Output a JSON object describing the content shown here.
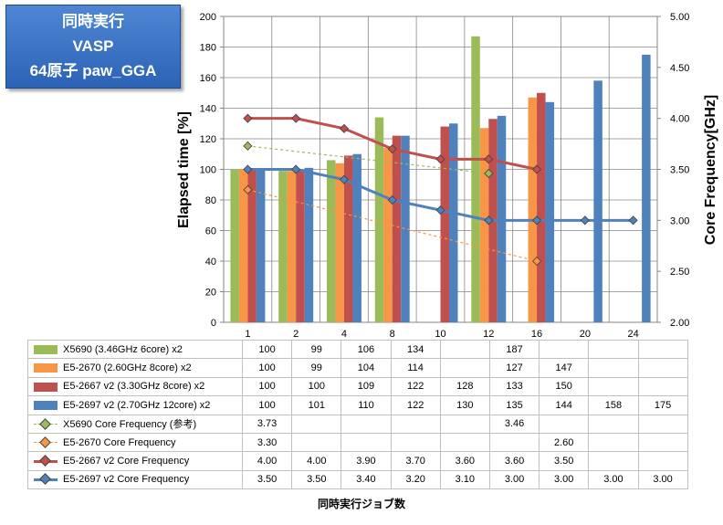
{
  "title_box": {
    "line1": "同時実行",
    "line2": "VASP",
    "line3": "64原子 paw_GGA"
  },
  "chart_data": {
    "type": "bar",
    "categories": [
      "1",
      "2",
      "4",
      "8",
      "10",
      "12",
      "16",
      "20",
      "24"
    ],
    "xlabel": "同時実行ジョブ数",
    "ylabel": "Elapsed time [%]",
    "ylabel_right": "Core Frequency[GHz]",
    "ylim": [
      0,
      200
    ],
    "ylim_right": [
      2.0,
      5.0
    ],
    "yticks": [
      "0",
      "20",
      "40",
      "60",
      "80",
      "100",
      "120",
      "140",
      "160",
      "180",
      "200"
    ],
    "yticks_right": [
      "2.00",
      "2.50",
      "3.00",
      "3.50",
      "4.00",
      "4.50",
      "5.00"
    ],
    "grid": true,
    "series": [
      {
        "name": "X5690 (3.46GHz 6core) x2",
        "kind": "bar",
        "axis": "left",
        "color": "#9bbb59",
        "values": [
          100,
          99,
          106,
          134,
          null,
          187,
          null,
          null,
          null
        ]
      },
      {
        "name": "E5-2670 (2.60GHz 8core) x2",
        "kind": "bar",
        "axis": "left",
        "color": "#f79646",
        "values": [
          100,
          99,
          104,
          114,
          null,
          127,
          147,
          null,
          null
        ]
      },
      {
        "name": "E5-2667 v2 (3.30GHz 8core) x2",
        "kind": "bar",
        "axis": "left",
        "color": "#c0504d",
        "values": [
          100,
          100,
          109,
          122,
          128,
          133,
          150,
          null,
          null
        ]
      },
      {
        "name": "E5-2697 v2 (2.70GHz 12core) x2",
        "kind": "bar",
        "axis": "left",
        "color": "#4f81bd",
        "values": [
          100,
          101,
          110,
          122,
          130,
          135,
          144,
          158,
          175
        ]
      },
      {
        "name": "X5690 Core Frequency (参考)",
        "kind": "line",
        "axis": "right",
        "color": "#9bbb59",
        "dashed": true,
        "values": [
          3.73,
          null,
          null,
          null,
          null,
          3.46,
          null,
          null,
          null
        ]
      },
      {
        "name": "E5-2670 Core Frequency",
        "kind": "line",
        "axis": "right",
        "color": "#f79646",
        "dashed": true,
        "values": [
          3.3,
          null,
          null,
          null,
          null,
          null,
          2.6,
          null,
          null
        ]
      },
      {
        "name": "E5-2667 v2 Core Frequency",
        "kind": "line",
        "axis": "right",
        "color": "#c0504d",
        "dashed": false,
        "values": [
          4.0,
          4.0,
          3.9,
          3.7,
          3.6,
          3.6,
          3.5,
          null,
          null
        ]
      },
      {
        "name": "E5-2697 v2 Core Frequency",
        "kind": "line",
        "axis": "right",
        "color": "#4f81bd",
        "dashed": false,
        "values": [
          3.5,
          3.5,
          3.4,
          3.2,
          3.1,
          3.0,
          3.0,
          3.0,
          3.0
        ]
      }
    ],
    "table_values": [
      [
        "100",
        "99",
        "106",
        "134",
        "",
        "187",
        "",
        "",
        ""
      ],
      [
        "100",
        "99",
        "104",
        "114",
        "",
        "127",
        "147",
        "",
        ""
      ],
      [
        "100",
        "100",
        "109",
        "122",
        "128",
        "133",
        "150",
        "",
        ""
      ],
      [
        "100",
        "101",
        "110",
        "122",
        "130",
        "135",
        "144",
        "158",
        "175"
      ],
      [
        "3.73",
        "",
        "",
        "",
        "",
        "3.46",
        "",
        "",
        ""
      ],
      [
        "3.30",
        "",
        "",
        "",
        "",
        "",
        "2.60",
        "",
        ""
      ],
      [
        "4.00",
        "4.00",
        "3.90",
        "3.70",
        "3.60",
        "3.60",
        "3.50",
        "",
        ""
      ],
      [
        "3.50",
        "3.50",
        "3.40",
        "3.20",
        "3.10",
        "3.00",
        "3.00",
        "3.00",
        "3.00"
      ]
    ]
  }
}
